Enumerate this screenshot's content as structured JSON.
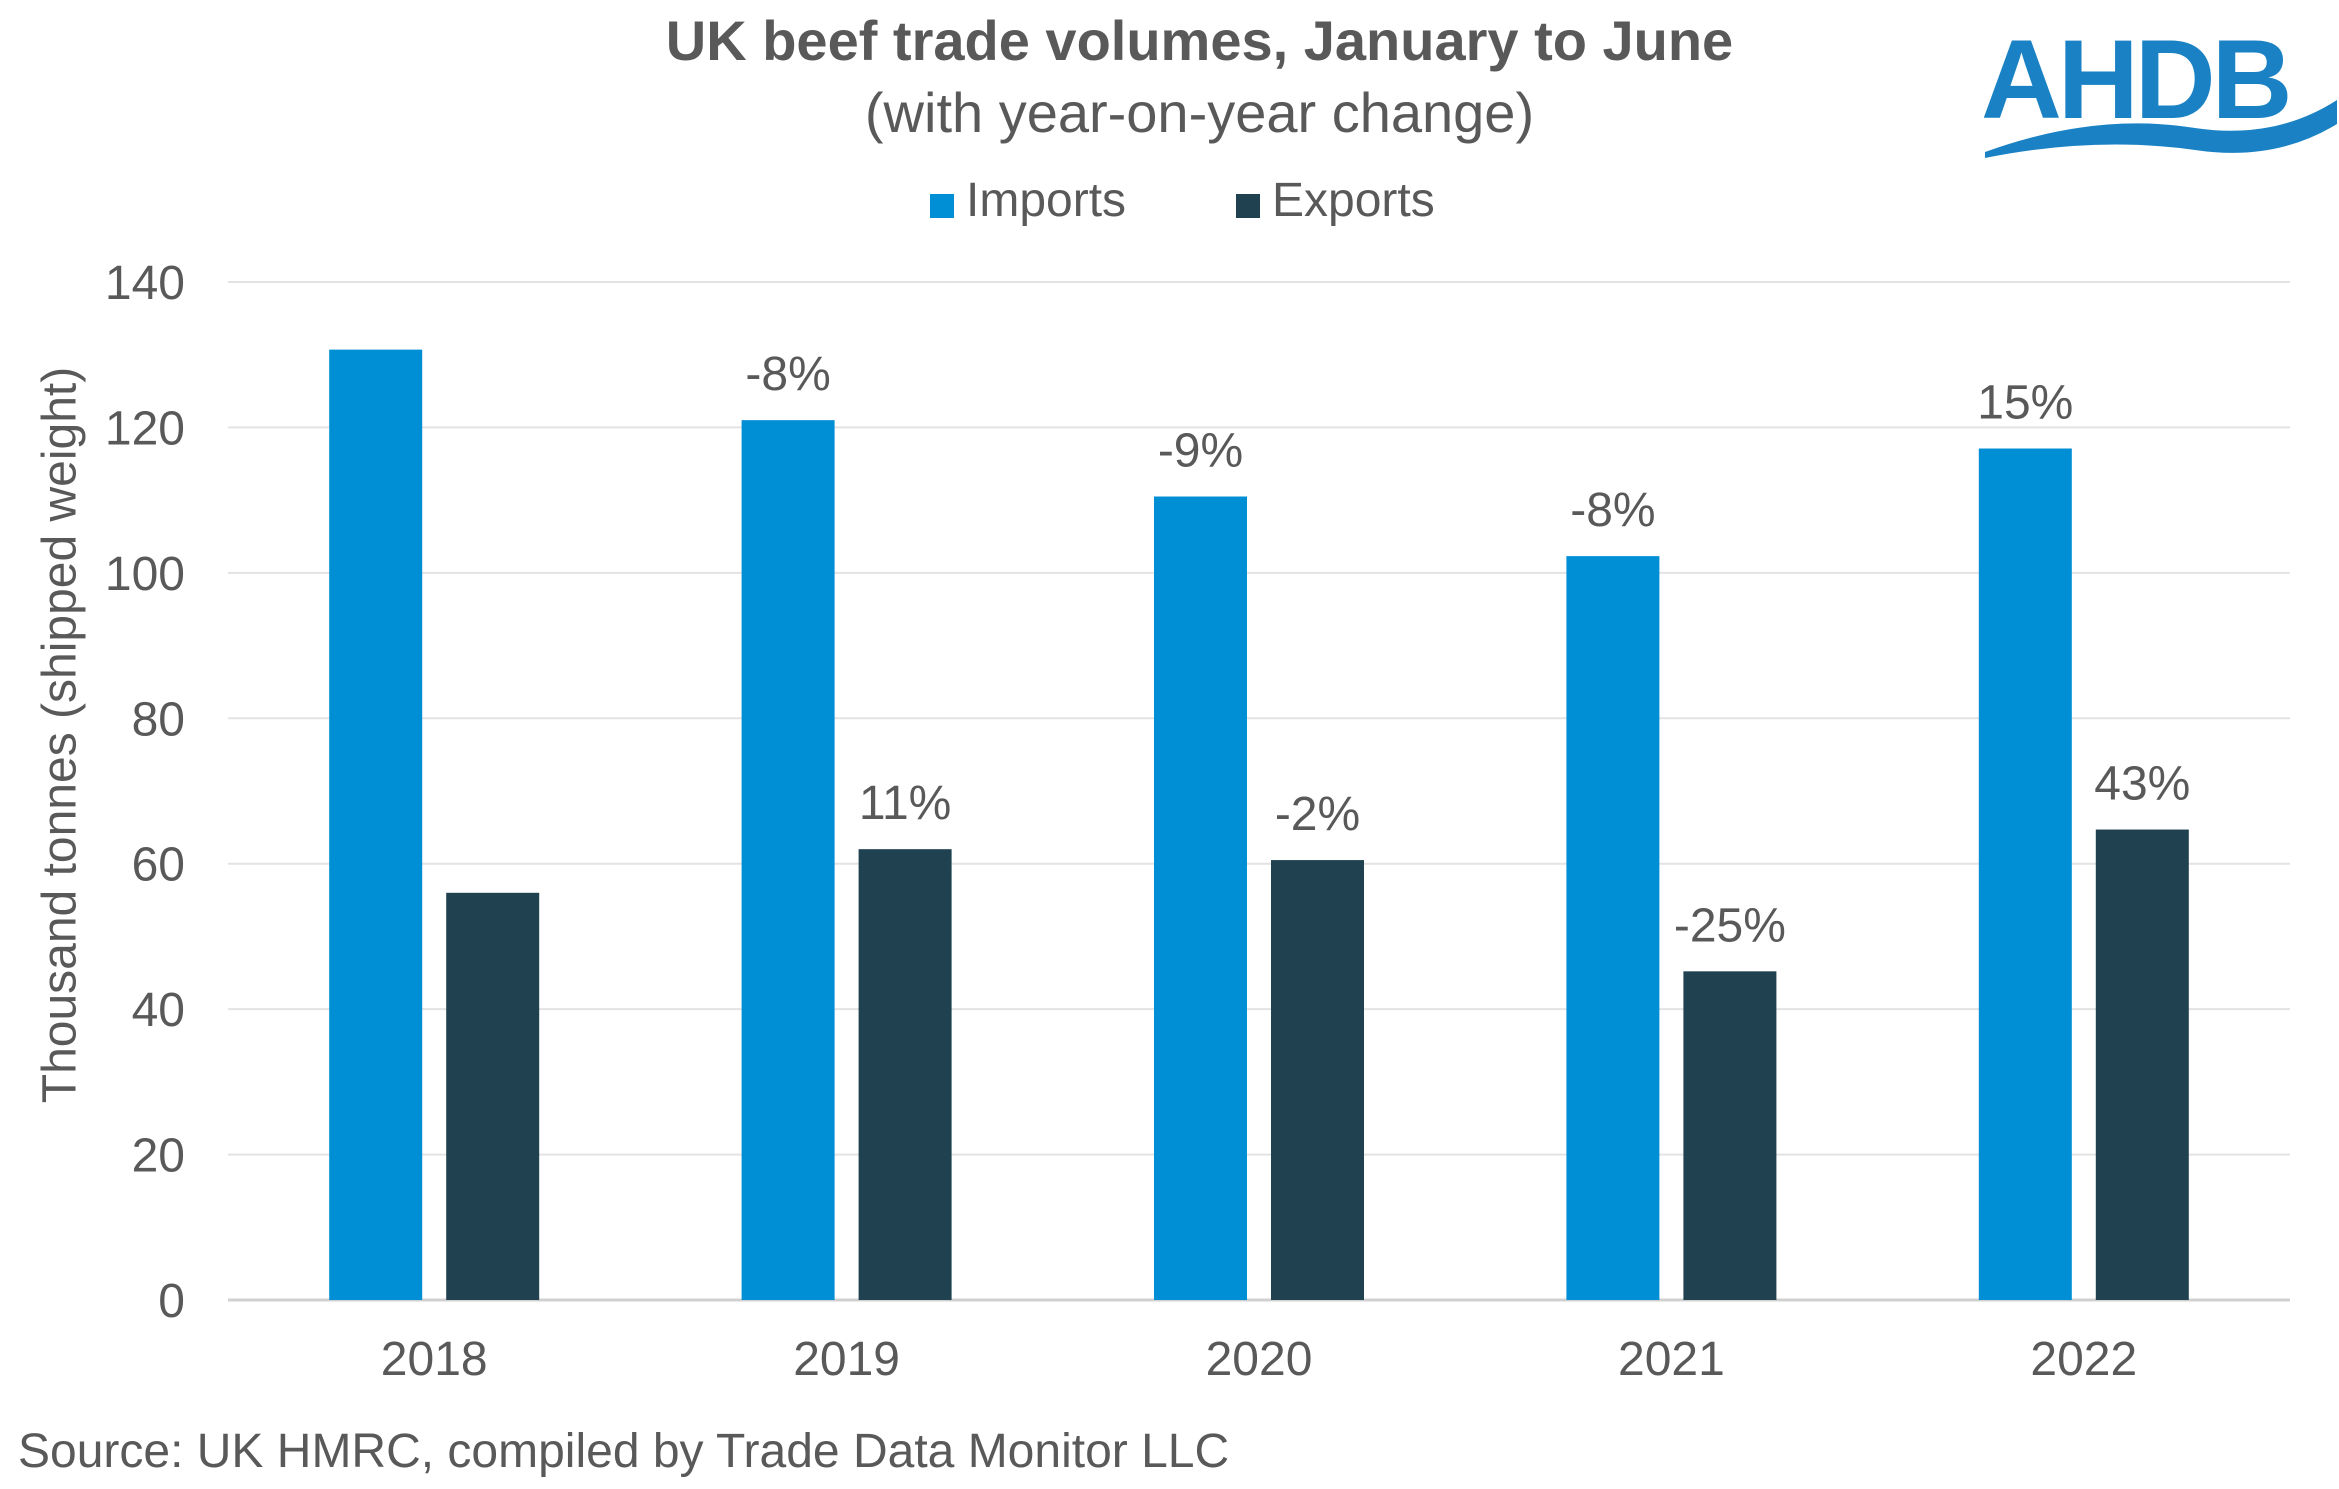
{
  "chart_data": {
    "type": "bar",
    "title": "UK beef trade volumes, January to June",
    "subtitle": "(with year-on-year change)",
    "xlabel": "",
    "ylabel": "Thousand tonnes (shipped weight)",
    "categories": [
      "2018",
      "2019",
      "2020",
      "2021",
      "2022"
    ],
    "ylim": [
      0,
      140
    ],
    "yticks": [
      "0",
      "20",
      "40",
      "60",
      "80",
      "100",
      "120",
      "140"
    ],
    "grid": true,
    "legend_position": "top",
    "series": [
      {
        "name": "Imports",
        "color": "#008fd5",
        "values": [
          130.7,
          121,
          110.5,
          102.3,
          117.1
        ],
        "labels": [
          "",
          "-8%",
          "-9%",
          "-8%",
          "15%"
        ]
      },
      {
        "name": "Exports",
        "color": "#204150",
        "values": [
          56,
          62,
          60.5,
          45.2,
          64.7
        ],
        "labels": [
          "",
          "11%",
          "-2%",
          "-25%",
          "43%"
        ]
      }
    ]
  },
  "logo": {
    "text": "AHDB",
    "color": "#1a82c4"
  },
  "source": "Source: UK HMRC, compiled by Trade Data Monitor LLC"
}
